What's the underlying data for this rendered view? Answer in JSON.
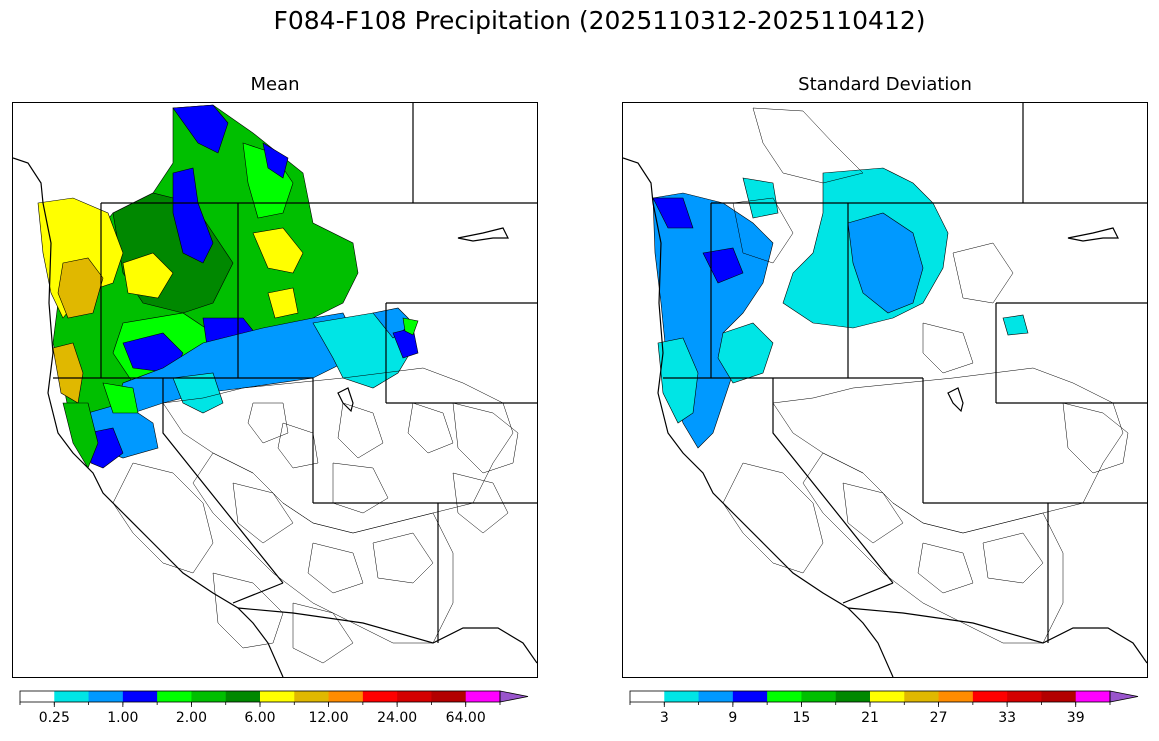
{
  "figure": {
    "title": "F084-F108 Precipitation (2025110312-2025110412)"
  },
  "panels": [
    {
      "title": "Mean",
      "colorbar": {
        "colors": [
          "#ffffff",
          "#00e5e5",
          "#0099ff",
          "#0000ff",
          "#00ff00",
          "#00bf00",
          "#008800",
          "#ffff00",
          "#e0b800",
          "#ff8c00",
          "#ff0000",
          "#d40000",
          "#b30000",
          "#ff00ff",
          "#9955cc"
        ],
        "tick_labels": [
          "0.25",
          "1.00",
          "2.00",
          "6.00",
          "12.00",
          "24.00",
          "64.00"
        ],
        "extend": "max"
      }
    },
    {
      "title": "Standard Deviation",
      "colorbar": {
        "colors": [
          "#ffffff",
          "#00e5e5",
          "#0099ff",
          "#0000ff",
          "#00ff00",
          "#00bf00",
          "#008800",
          "#ffff00",
          "#e0b800",
          "#ff8c00",
          "#ff0000",
          "#d40000",
          "#b30000",
          "#ff00ff",
          "#9955cc"
        ],
        "tick_labels": [
          "3",
          "9",
          "15",
          "21",
          "27",
          "33",
          "39"
        ],
        "extend": "max"
      }
    }
  ]
}
